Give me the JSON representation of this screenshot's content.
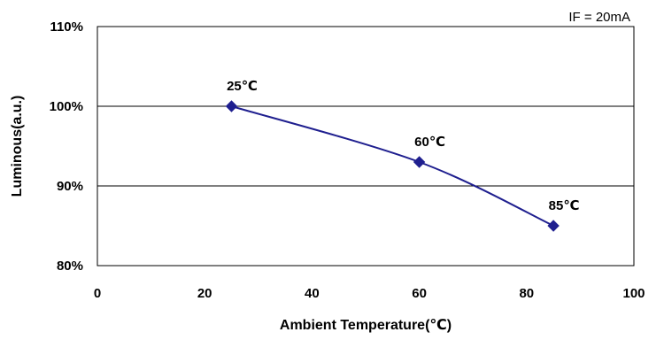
{
  "chart_data": {
    "type": "line",
    "title": "",
    "xlabel": "Ambient Temperature(℃)",
    "ylabel": "Luminous(a.u.)",
    "annotation": "IF = 20mA",
    "xlim": [
      0,
      100
    ],
    "ylim": [
      80,
      110
    ],
    "x_ticks": [
      0,
      20,
      40,
      60,
      80,
      100
    ],
    "y_ticks": [
      80,
      90,
      100,
      110
    ],
    "y_tick_labels": [
      "80%",
      "90%",
      "100%",
      "110%"
    ],
    "grid": "horizontal",
    "series": [
      {
        "color": "#1f1f8f",
        "marker": "diamond",
        "x": [
          25,
          60,
          85
        ],
        "y": [
          100,
          93,
          85
        ],
        "point_labels": [
          "25℃",
          "60℃",
          "85℃"
        ]
      }
    ]
  }
}
